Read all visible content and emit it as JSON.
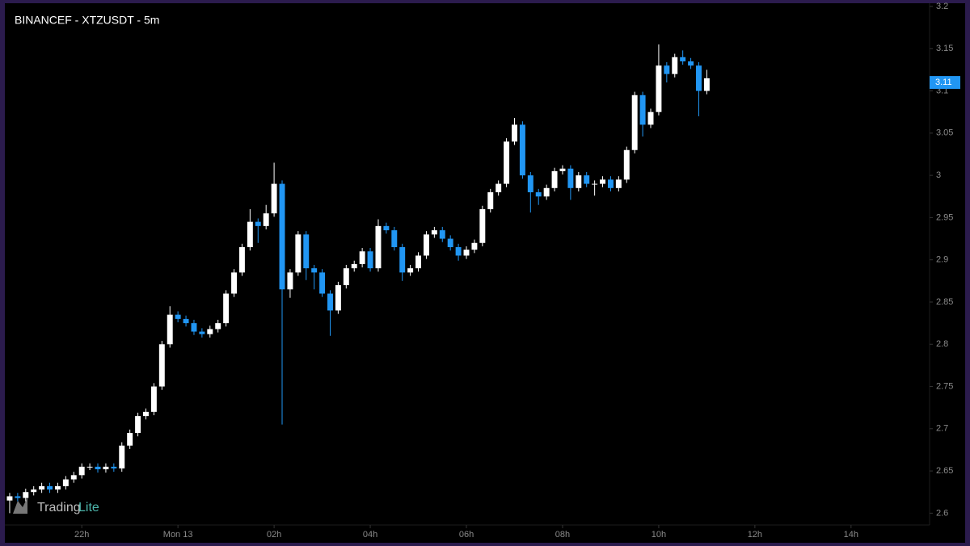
{
  "chart_data": {
    "type": "candlestick",
    "title": "BINANCEF - XTZUSDT - 5m",
    "x": [
      -210,
      -200,
      -190,
      -180,
      -170,
      -160,
      -150,
      -140,
      -130,
      -120,
      -110,
      -100,
      -90,
      -80,
      -70,
      -60,
      -50,
      -40,
      -30,
      -20,
      -10,
      0,
      10,
      20,
      30,
      40,
      50,
      60,
      70,
      80,
      90,
      100,
      110,
      120,
      130,
      140,
      150,
      160,
      170,
      180,
      190,
      200,
      210,
      220,
      230,
      240,
      250,
      260,
      270,
      280,
      290,
      300,
      310,
      320,
      330,
      340,
      350,
      360,
      370,
      380,
      390,
      400,
      410,
      420,
      430,
      440,
      450,
      460,
      470,
      480,
      490,
      500,
      510,
      520,
      530,
      540,
      550,
      560,
      570,
      580,
      590,
      600,
      610,
      620,
      630,
      640,
      650,
      660
    ],
    "open": [
      2.615,
      2.62,
      2.618,
      2.625,
      2.628,
      2.632,
      2.628,
      2.632,
      2.64,
      2.645,
      2.655,
      2.655,
      2.652,
      2.655,
      2.653,
      2.68,
      2.695,
      2.715,
      2.72,
      2.75,
      2.8,
      2.835,
      2.83,
      2.825,
      2.815,
      2.812,
      2.818,
      2.825,
      2.86,
      2.885,
      2.915,
      2.945,
      2.94,
      2.955,
      2.99,
      2.865,
      2.885,
      2.93,
      2.89,
      2.885,
      2.86,
      2.84,
      2.87,
      2.89,
      2.895,
      2.91,
      2.89,
      2.94,
      2.935,
      2.915,
      2.885,
      2.89,
      2.905,
      2.93,
      2.935,
      2.925,
      2.915,
      2.905,
      2.912,
      2.92,
      2.96,
      2.98,
      2.99,
      3.04,
      3.06,
      3.0,
      2.98,
      2.975,
      2.985,
      3.005,
      3.008,
      2.985,
      3.0,
      2.99,
      2.99,
      2.995,
      2.985,
      2.995,
      3.03,
      3.095,
      3.06,
      3.075,
      3.13,
      3.12,
      3.14,
      3.135,
      3.13,
      3.1
    ],
    "high": [
      2.624,
      2.624,
      2.629,
      2.632,
      2.636,
      2.636,
      2.636,
      2.644,
      2.649,
      2.659,
      2.659,
      2.659,
      2.659,
      2.659,
      2.684,
      2.699,
      2.719,
      2.724,
      2.754,
      2.804,
      2.845,
      2.839,
      2.834,
      2.829,
      2.819,
      2.822,
      2.829,
      2.864,
      2.889,
      2.919,
      2.96,
      2.949,
      2.965,
      3.015,
      2.994,
      2.889,
      2.934,
      2.934,
      2.894,
      2.889,
      2.864,
      2.874,
      2.894,
      2.899,
      2.914,
      2.914,
      2.948,
      2.944,
      2.939,
      2.919,
      2.894,
      2.909,
      2.934,
      2.939,
      2.939,
      2.929,
      2.919,
      2.916,
      2.924,
      2.964,
      2.984,
      2.994,
      3.044,
      3.068,
      3.064,
      3.004,
      2.984,
      2.989,
      3.009,
      3.012,
      3.012,
      3.004,
      3.004,
      2.994,
      2.999,
      2.999,
      2.999,
      3.034,
      3.099,
      3.099,
      3.079,
      3.155,
      3.134,
      3.144,
      3.148,
      3.139,
      3.134,
      3.125
    ],
    "low": [
      2.6,
      2.614,
      2.614,
      2.621,
      2.624,
      2.624,
      2.624,
      2.628,
      2.636,
      2.641,
      2.651,
      2.648,
      2.648,
      2.649,
      2.649,
      2.676,
      2.691,
      2.711,
      2.716,
      2.746,
      2.796,
      2.826,
      2.821,
      2.811,
      2.808,
      2.808,
      2.814,
      2.821,
      2.856,
      2.881,
      2.911,
      2.92,
      2.936,
      2.951,
      2.705,
      2.855,
      2.881,
      2.876,
      2.865,
      2.856,
      2.81,
      2.836,
      2.866,
      2.886,
      2.891,
      2.886,
      2.886,
      2.931,
      2.911,
      2.875,
      2.881,
      2.886,
      2.901,
      2.926,
      2.921,
      2.911,
      2.899,
      2.901,
      2.908,
      2.916,
      2.956,
      2.976,
      2.986,
      3.036,
      2.996,
      2.956,
      2.965,
      2.971,
      2.981,
      3.001,
      2.971,
      2.981,
      2.986,
      2.976,
      2.986,
      2.981,
      2.981,
      2.991,
      3.026,
      3.046,
      3.056,
      3.071,
      3.11,
      3.116,
      3.131,
      3.126,
      3.07,
      3.096
    ],
    "close": [
      2.62,
      2.618,
      2.625,
      2.628,
      2.632,
      2.628,
      2.632,
      2.64,
      2.645,
      2.655,
      2.655,
      2.652,
      2.655,
      2.653,
      2.68,
      2.695,
      2.715,
      2.72,
      2.75,
      2.8,
      2.835,
      2.83,
      2.825,
      2.815,
      2.812,
      2.818,
      2.825,
      2.86,
      2.885,
      2.915,
      2.945,
      2.94,
      2.955,
      2.99,
      2.865,
      2.885,
      2.93,
      2.89,
      2.885,
      2.86,
      2.84,
      2.87,
      2.89,
      2.895,
      2.91,
      2.89,
      2.94,
      2.935,
      2.915,
      2.885,
      2.89,
      2.905,
      2.93,
      2.935,
      2.925,
      2.915,
      2.905,
      2.912,
      2.92,
      2.96,
      2.98,
      2.99,
      3.04,
      3.06,
      3.0,
      2.98,
      2.975,
      2.985,
      3.005,
      3.008,
      2.985,
      3.0,
      2.99,
      2.99,
      2.995,
      2.985,
      2.995,
      3.03,
      3.095,
      3.06,
      3.075,
      3.13,
      3.12,
      3.14,
      3.135,
      3.13,
      3.1,
      3.115
    ],
    "up_color": "#ffffff",
    "down_color": "#2196f3",
    "xlim": [
      -214,
      936
    ],
    "xticks": [
      {
        "value": -120,
        "label": "22h"
      },
      {
        "value": 0,
        "label": "Mon 13"
      },
      {
        "value": 120,
        "label": "02h"
      },
      {
        "value": 240,
        "label": "04h"
      },
      {
        "value": 360,
        "label": "06h"
      },
      {
        "value": 480,
        "label": "08h"
      },
      {
        "value": 600,
        "label": "10h"
      },
      {
        "value": 720,
        "label": "12h"
      },
      {
        "value": 840,
        "label": "14h"
      }
    ],
    "ylim": [
      2.586,
      3.2
    ],
    "yticks": [
      2.6,
      2.65,
      2.7,
      2.75,
      2.8,
      2.85,
      2.9,
      2.95,
      3,
      3.05,
      3.1,
      3.15,
      3.2
    ],
    "last_price": 3.11,
    "watermark": {
      "brand": "Trading",
      "suffix": "Lite"
    }
  }
}
